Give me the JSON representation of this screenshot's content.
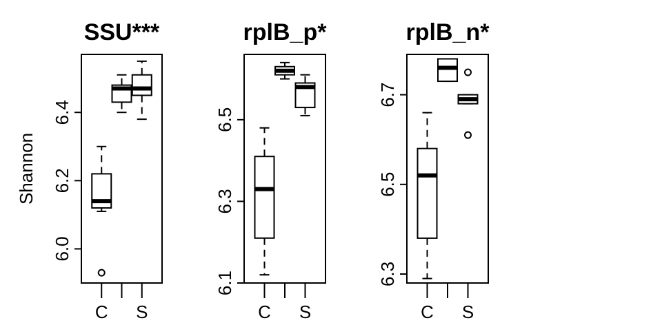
{
  "chart_data": [
    {
      "type": "boxplot",
      "title": "SSU***",
      "ylabel": "Shannon",
      "categories": [
        "C",
        "",
        "S"
      ],
      "ylim": [
        5.9,
        6.57
      ],
      "yticks": [
        "6.0",
        "6.2",
        "6.4"
      ],
      "boxes": [
        {
          "whisker_low": 6.11,
          "q1": 6.12,
          "median": 6.14,
          "q3": 6.22,
          "whisker_high": 6.3,
          "outliers": [
            5.93
          ]
        },
        {
          "whisker_low": 6.4,
          "q1": 6.43,
          "median": 6.47,
          "q3": 6.48,
          "whisker_high": 6.51,
          "outliers": []
        },
        {
          "whisker_low": 6.38,
          "q1": 6.45,
          "median": 6.47,
          "q3": 6.51,
          "whisker_high": 6.55,
          "outliers": []
        }
      ]
    },
    {
      "type": "boxplot",
      "title": "rplB_p*",
      "ylabel": "",
      "categories": [
        "C",
        "",
        "S"
      ],
      "ylim": [
        6.1,
        6.66
      ],
      "yticks": [
        "6.1",
        "6.3",
        "6.5"
      ],
      "boxes": [
        {
          "whisker_low": 6.12,
          "q1": 6.21,
          "median": 6.33,
          "q3": 6.41,
          "whisker_high": 6.48,
          "outliers": []
        },
        {
          "whisker_low": 6.6,
          "q1": 6.61,
          "median": 6.62,
          "q3": 6.63,
          "whisker_high": 6.64,
          "outliers": []
        },
        {
          "whisker_low": 6.51,
          "q1": 6.53,
          "median": 6.58,
          "q3": 6.59,
          "whisker_high": 6.61,
          "outliers": []
        }
      ]
    },
    {
      "type": "boxplot",
      "title": "rplB_n*",
      "ylabel": "",
      "categories": [
        "C",
        "",
        "S"
      ],
      "ylim": [
        6.28,
        6.79
      ],
      "yticks": [
        "6.3",
        "6.5",
        "6.7"
      ],
      "boxes": [
        {
          "whisker_low": 6.29,
          "q1": 6.38,
          "median": 6.52,
          "q3": 6.58,
          "whisker_high": 6.66,
          "outliers": []
        },
        {
          "whisker_low": 6.73,
          "q1": 6.73,
          "median": 6.76,
          "q3": 6.78,
          "whisker_high": 6.78,
          "outliers": []
        },
        {
          "whisker_low": 6.68,
          "q1": 6.68,
          "median": 6.69,
          "q3": 6.7,
          "whisker_high": 6.7,
          "outliers": [
            6.61,
            6.75
          ]
        }
      ]
    }
  ]
}
